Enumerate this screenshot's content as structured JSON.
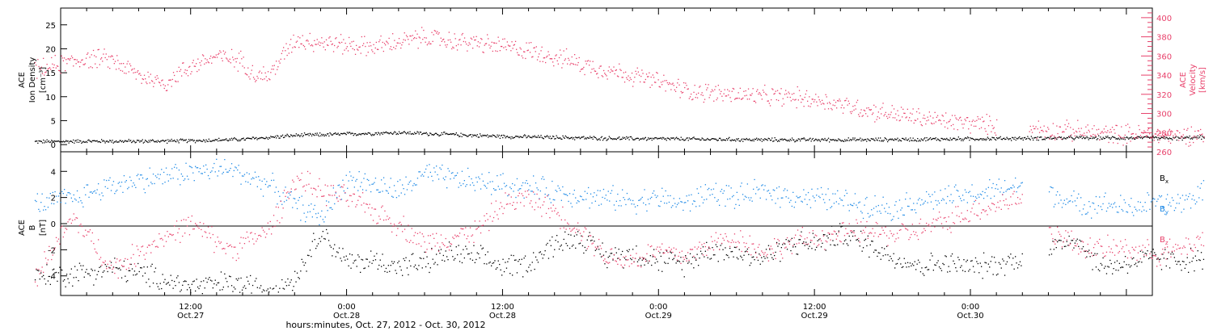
{
  "colors": {
    "axis": "#000000",
    "velocity": "#e8416b",
    "bx": "#000000",
    "by": "#1f8ae6",
    "bz": "#e8416b"
  },
  "chart_data": [
    {
      "type": "scatter",
      "panel": "top",
      "ylabel_left": [
        "ACE",
        "Ion Density",
        "[cm⁻³]"
      ],
      "ylabel_right": [
        "ACE",
        "Velocity",
        "[km/s]"
      ],
      "left_axis": {
        "ylim": [
          -1.5,
          28.5
        ],
        "ticks": [
          0,
          5,
          10,
          15,
          20,
          25
        ]
      },
      "right_axis": {
        "ylim": [
          260,
          410
        ],
        "ticks": [
          260,
          280,
          300,
          320,
          340,
          360,
          380,
          400
        ]
      },
      "series": [
        {
          "axis": "left",
          "color_key": "bx",
          "x": [
            -12,
            -8,
            -4,
            0,
            4,
            8,
            12,
            16,
            20,
            24,
            28,
            32,
            36,
            40,
            44,
            48,
            52,
            56,
            60,
            64,
            68,
            72,
            76,
            78
          ],
          "y": [
            0.7,
            0.8,
            0.8,
            0.9,
            1.2,
            2.0,
            2.3,
            2.6,
            2.2,
            1.8,
            1.6,
            1.4,
            1.3,
            1.2,
            1.1,
            1.1,
            1.1,
            1.2,
            1.3,
            1.4,
            1.5,
            1.5,
            1.4,
            1.7
          ]
        },
        {
          "axis": "right",
          "color_key": "velocity",
          "x": [
            -12,
            -10,
            -8,
            -6,
            -4,
            -2,
            0,
            2,
            4,
            5,
            6,
            8,
            10,
            12,
            14,
            16,
            18,
            20,
            22,
            24,
            26,
            28,
            30,
            32,
            34,
            36,
            38,
            40,
            42,
            44,
            46,
            48,
            50,
            52,
            54,
            56,
            58,
            60,
            62,
            64,
            66,
            68,
            70,
            72,
            74,
            76,
            78
          ],
          "y": [
            345,
            352,
            358,
            356,
            340,
            332,
            350,
            360,
            355,
            340,
            340,
            378,
            375,
            372,
            370,
            375,
            380,
            376,
            374,
            370,
            366,
            360,
            352,
            346,
            340,
            333,
            325,
            322,
            320,
            318,
            318,
            315,
            310,
            304,
            300,
            296,
            292,
            290,
            288,
            286,
            283,
            282,
            280,
            279,
            278,
            277,
            280
          ]
        }
      ]
    },
    {
      "type": "scatter",
      "panel": "bottom",
      "ylabel_left": [
        "ACE",
        "B",
        "[nT]"
      ],
      "ylim": [
        -5.5,
        5.5
      ],
      "ticks": [
        -4,
        -2,
        0,
        2,
        4
      ],
      "legend": [
        "B",
        "B",
        "B"
      ],
      "legend_subscripts": [
        "x",
        "y",
        "z"
      ],
      "series": [
        {
          "color_key": "bx",
          "x": [
            -12,
            -9,
            -6,
            -3,
            0,
            3,
            6,
            8,
            10,
            12,
            14,
            16,
            18,
            20,
            22,
            24,
            26,
            28,
            30,
            32,
            34,
            36,
            38,
            40,
            42,
            44,
            46,
            48,
            50,
            52,
            54,
            56,
            58,
            60,
            62,
            64,
            66,
            68,
            70,
            72,
            74,
            76,
            78
          ],
          "y": [
            -4.0,
            -3.8,
            -3.4,
            -4.0,
            -4.8,
            -4.5,
            -5.0,
            -4.2,
            -0.5,
            -3.0,
            -2.8,
            -3.2,
            -3.0,
            -2.2,
            -2.6,
            -3.2,
            -3.0,
            -1.5,
            -1.0,
            -2.5,
            -2.2,
            -2.8,
            -3.0,
            -1.8,
            -2.2,
            -2.6,
            -1.5,
            -1.5,
            -0.8,
            -1.5,
            -2.5,
            -3.2,
            -3.0,
            -3.3,
            -3.1,
            -2.6,
            -2.0,
            -1.0,
            -3.3,
            -3.0,
            -2.6,
            -2.8,
            -2.7
          ]
        },
        {
          "color_key": "by",
          "x": [
            -12,
            -9,
            -6,
            -3,
            0,
            3,
            6,
            8,
            10,
            12,
            14,
            16,
            18,
            20,
            22,
            24,
            26,
            28,
            30,
            32,
            34,
            36,
            38,
            40,
            42,
            44,
            46,
            48,
            50,
            52,
            54,
            56,
            58,
            60,
            62,
            64,
            66,
            68,
            70,
            72,
            74,
            76,
            78
          ],
          "y": [
            1.5,
            2.0,
            3.0,
            3.5,
            4.0,
            4.2,
            3.0,
            1.5,
            0.5,
            3.5,
            3.0,
            2.5,
            3.8,
            3.5,
            3.2,
            3.0,
            2.8,
            2.5,
            2.2,
            2.0,
            1.8,
            2.0,
            1.5,
            2.5,
            2.0,
            2.5,
            2.2,
            2.0,
            1.8,
            1.5,
            1.2,
            1.8,
            2.0,
            2.2,
            2.6,
            3.0,
            2.5,
            1.5,
            1.6,
            1.2,
            1.6,
            1.6,
            2.4
          ]
        },
        {
          "color_key": "bz",
          "x": [
            -12,
            -9,
            -6,
            -3,
            0,
            3,
            6,
            8,
            10,
            12,
            14,
            16,
            18,
            20,
            22,
            24,
            26,
            28,
            30,
            32,
            34,
            36,
            38,
            40,
            42,
            44,
            46,
            48,
            50,
            52,
            54,
            56,
            58,
            60,
            62,
            64,
            66,
            68,
            70,
            72,
            74,
            76,
            78
          ],
          "y": [
            -4.0,
            0.5,
            -3.5,
            -1.5,
            0.0,
            -2.0,
            -0.5,
            3.5,
            2.5,
            2.0,
            1.0,
            0.0,
            -1.5,
            -1.0,
            -0.5,
            1.5,
            2.0,
            1.0,
            -0.5,
            -2.5,
            -2.8,
            -2.0,
            -2.5,
            -1.5,
            -1.0,
            -2.2,
            -1.5,
            -1.0,
            -0.8,
            -0.5,
            -0.8,
            -0.5,
            0.2,
            1.0,
            1.5,
            2.0,
            -0.5,
            -1.5,
            -2.0,
            -1.8,
            -2.3,
            -2.0,
            -1.0
          ]
        }
      ]
    }
  ],
  "x_axis": {
    "ticks": [
      {
        "hour": 0,
        "time": "12:00",
        "date": "Oct.27"
      },
      {
        "hour": 12,
        "time": "0:00",
        "date": "Oct.28"
      },
      {
        "hour": 24,
        "time": "12:00",
        "date": "Oct.28"
      },
      {
        "hour": 36,
        "time": "0:00",
        "date": "Oct.29"
      },
      {
        "hour": 48,
        "time": "12:00",
        "date": "Oct.29"
      },
      {
        "hour": 60,
        "time": "0:00",
        "date": "Oct.30"
      }
    ],
    "xlim": [
      -10,
      74
    ],
    "title": "hours:minutes, Oct. 27, 2012 - Oct. 30, 2012"
  }
}
